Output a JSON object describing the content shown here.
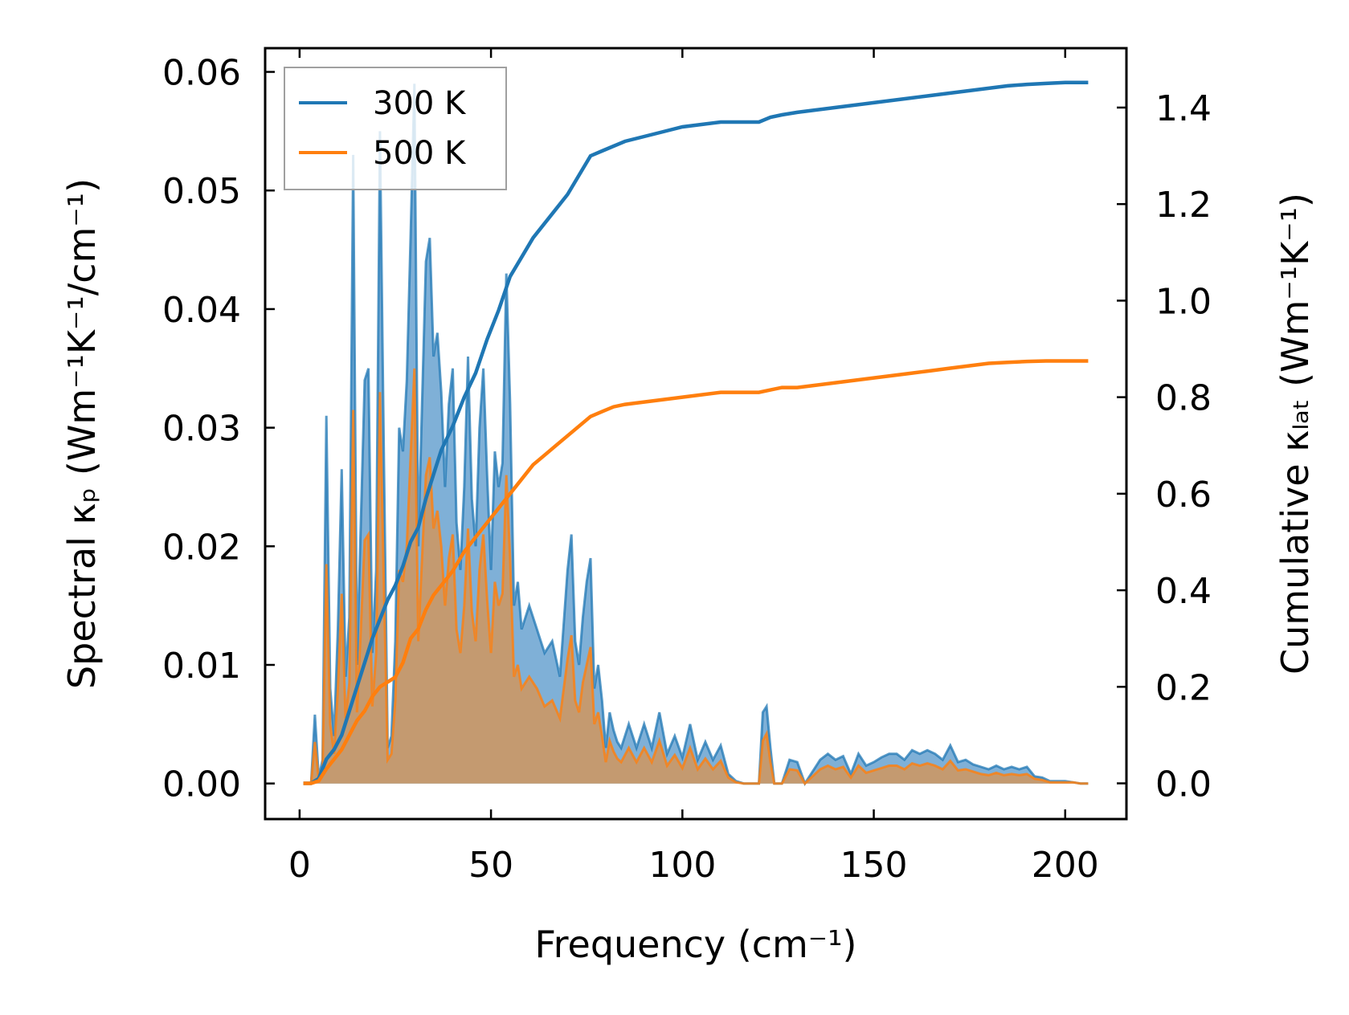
{
  "chart_data": {
    "type": "line",
    "title": "",
    "xlabel": "Frequency (cm⁻¹)",
    "ylabel_left": "Spectral κₚ (Wm⁻¹K⁻¹/cm⁻¹)",
    "ylabel_right": "Cumulative κₗₐₜ (Wm⁻¹K⁻¹)",
    "xlim": [
      -9,
      216
    ],
    "ylim_left": [
      -0.003,
      0.062
    ],
    "ylim_right": [
      -0.074,
      1.523
    ],
    "x_ticks": [
      "0",
      "50",
      "100",
      "150",
      "200"
    ],
    "y_ticks_left": [
      "0.00",
      "0.01",
      "0.02",
      "0.03",
      "0.04",
      "0.05",
      "0.06"
    ],
    "y_ticks_right": [
      "0.0",
      "0.2",
      "0.4",
      "0.6",
      "0.8",
      "1.0",
      "1.2",
      "1.4"
    ],
    "legend": {
      "location": "upper-left",
      "entries": [
        "300 K",
        "500 K"
      ]
    },
    "colors": {
      "300K": "#1f77b4",
      "500K": "#ff7f0e",
      "fill_300K": "#7fb0d7",
      "fill_overlap": "#c49a70"
    },
    "series": [
      {
        "name": "300 K spectral κₚ",
        "axis": "left",
        "style": "filled",
        "x": [
          1,
          3,
          4,
          5,
          6,
          7,
          8,
          9,
          10,
          11,
          12,
          13,
          14,
          15,
          16,
          17,
          18,
          19,
          20,
          21,
          22,
          23,
          24,
          25,
          26,
          27,
          28,
          29,
          30,
          31,
          32,
          33,
          34,
          35,
          36,
          37,
          38,
          39,
          40,
          41,
          42,
          43,
          44,
          45,
          46,
          47,
          48,
          49,
          50,
          51,
          52,
          53,
          54,
          55,
          56,
          57,
          58,
          60,
          62,
          64,
          66,
          68,
          70,
          71,
          72,
          73,
          74,
          75,
          76,
          77,
          78,
          79,
          80,
          81,
          82,
          83,
          84,
          86,
          88,
          90,
          92,
          94,
          96,
          98,
          100,
          102,
          104,
          106,
          108,
          110,
          112,
          114,
          116,
          118,
          120,
          121,
          122,
          123,
          124,
          126,
          128,
          130,
          132,
          134,
          136,
          138,
          140,
          142,
          144,
          146,
          148,
          150,
          152,
          154,
          156,
          158,
          160,
          162,
          164,
          166,
          168,
          170,
          172,
          174,
          176,
          178,
          180,
          182,
          184,
          186,
          188,
          190,
          192,
          194,
          196,
          198,
          200,
          202,
          204,
          206
        ],
        "values": [
          0,
          0,
          0.0058,
          0.0005,
          0.002,
          0.031,
          0.008,
          0.004,
          0.013,
          0.0265,
          0.009,
          0.014,
          0.053,
          0.01,
          0.022,
          0.034,
          0.035,
          0.011,
          0.018,
          0.055,
          0.028,
          0.003,
          0.004,
          0.012,
          0.03,
          0.028,
          0.034,
          0.046,
          0.059,
          0.02,
          0.032,
          0.044,
          0.046,
          0.036,
          0.038,
          0.033,
          0.025,
          0.032,
          0.035,
          0.022,
          0.018,
          0.025,
          0.036,
          0.024,
          0.02,
          0.03,
          0.035,
          0.026,
          0.018,
          0.028,
          0.025,
          0.027,
          0.043,
          0.032,
          0.015,
          0.017,
          0.013,
          0.015,
          0.013,
          0.011,
          0.012,
          0.009,
          0.018,
          0.021,
          0.012,
          0.01,
          0.014,
          0.017,
          0.019,
          0.008,
          0.01,
          0.007,
          0.003,
          0.006,
          0.0045,
          0.0035,
          0.003,
          0.005,
          0.003,
          0.005,
          0.003,
          0.006,
          0.0025,
          0.004,
          0.0022,
          0.005,
          0.002,
          0.0035,
          0.002,
          0.0032,
          0.0008,
          0.0002,
          0,
          0,
          0,
          0.006,
          0.0065,
          0.003,
          0,
          0,
          0.002,
          0.0018,
          0,
          0.001,
          0.002,
          0.0025,
          0.002,
          0.0023,
          0.0008,
          0.0025,
          0.0015,
          0.0018,
          0.0022,
          0.0025,
          0.0025,
          0.002,
          0.0028,
          0.0025,
          0.0028,
          0.0025,
          0.002,
          0.0032,
          0.0018,
          0.002,
          0.0016,
          0.0014,
          0.0012,
          0.0015,
          0.0012,
          0.0014,
          0.0012,
          0.0014,
          0.0006,
          0.0005,
          0.0002,
          0.0002,
          0.0002,
          0.0001,
          0,
          0
        ]
      },
      {
        "name": "500 K spectral κₚ",
        "axis": "left",
        "style": "filled",
        "x": [
          1,
          3,
          4,
          5,
          6,
          7,
          8,
          9,
          10,
          11,
          12,
          13,
          14,
          15,
          16,
          17,
          18,
          19,
          20,
          21,
          22,
          23,
          24,
          25,
          26,
          27,
          28,
          29,
          30,
          31,
          32,
          33,
          34,
          35,
          36,
          37,
          38,
          39,
          40,
          41,
          42,
          43,
          44,
          45,
          46,
          47,
          48,
          49,
          50,
          51,
          52,
          53,
          54,
          55,
          56,
          57,
          58,
          60,
          62,
          64,
          66,
          68,
          70,
          71,
          72,
          73,
          74,
          75,
          76,
          77,
          78,
          79,
          80,
          81,
          82,
          83,
          84,
          86,
          88,
          90,
          92,
          94,
          96,
          98,
          100,
          102,
          104,
          106,
          108,
          110,
          112,
          114,
          116,
          118,
          120,
          121,
          122,
          123,
          124,
          126,
          128,
          130,
          132,
          134,
          136,
          138,
          140,
          142,
          144,
          146,
          148,
          150,
          152,
          154,
          156,
          158,
          160,
          162,
          164,
          166,
          168,
          170,
          172,
          174,
          176,
          178,
          180,
          182,
          184,
          186,
          188,
          190,
          192,
          194,
          196,
          198,
          200,
          202,
          204,
          206
        ],
        "values": [
          0,
          0,
          0.0035,
          0.0003,
          0.0012,
          0.0185,
          0.005,
          0.0025,
          0.008,
          0.016,
          0.0055,
          0.0085,
          0.0315,
          0.006,
          0.013,
          0.0205,
          0.021,
          0.0065,
          0.011,
          0.033,
          0.017,
          0.002,
          0.0025,
          0.007,
          0.018,
          0.017,
          0.02,
          0.0275,
          0.035,
          0.012,
          0.019,
          0.026,
          0.0275,
          0.0215,
          0.023,
          0.02,
          0.015,
          0.019,
          0.021,
          0.013,
          0.011,
          0.015,
          0.0215,
          0.0145,
          0.012,
          0.018,
          0.021,
          0.0155,
          0.011,
          0.017,
          0.015,
          0.016,
          0.026,
          0.019,
          0.009,
          0.01,
          0.008,
          0.009,
          0.008,
          0.0065,
          0.007,
          0.0055,
          0.0105,
          0.0125,
          0.007,
          0.006,
          0.0085,
          0.01,
          0.0115,
          0.005,
          0.006,
          0.004,
          0.0018,
          0.0036,
          0.0027,
          0.0021,
          0.0018,
          0.003,
          0.0018,
          0.003,
          0.0018,
          0.0036,
          0.0015,
          0.0024,
          0.0013,
          0.003,
          0.0012,
          0.0021,
          0.0012,
          0.0019,
          0.0005,
          0.0001,
          0,
          0,
          0,
          0.0036,
          0.0042,
          0.0018,
          0,
          0,
          0.0012,
          0.0011,
          0,
          0.0006,
          0.0012,
          0.0015,
          0.0012,
          0.0014,
          0.0005,
          0.0015,
          0.0009,
          0.0011,
          0.0013,
          0.0015,
          0.0015,
          0.0012,
          0.0017,
          0.0015,
          0.0017,
          0.0015,
          0.0012,
          0.0019,
          0.0011,
          0.0012,
          0.001,
          0.0008,
          0.0007,
          0.0009,
          0.0007,
          0.0008,
          0.0007,
          0.0008,
          0.0004,
          0.0003,
          0.0001,
          0.0001,
          0.0001,
          0.0001,
          0,
          0
        ]
      },
      {
        "name": "300 K",
        "axis": "right",
        "style": "line",
        "x": [
          1,
          3,
          5,
          7,
          9,
          11,
          13,
          15,
          17,
          19,
          21,
          23,
          25,
          27,
          29,
          31,
          33,
          35,
          37,
          40,
          43,
          46,
          49,
          52,
          55,
          58,
          61,
          64,
          67,
          70,
          73,
          76,
          79,
          82,
          85,
          90,
          95,
          100,
          105,
          110,
          115,
          120,
          123,
          126,
          130,
          135,
          140,
          145,
          150,
          155,
          160,
          165,
          170,
          175,
          180,
          185,
          190,
          195,
          200,
          206
        ],
        "values": [
          0,
          0,
          0.01,
          0.05,
          0.07,
          0.1,
          0.15,
          0.2,
          0.25,
          0.3,
          0.34,
          0.38,
          0.41,
          0.45,
          0.5,
          0.53,
          0.59,
          0.64,
          0.69,
          0.74,
          0.8,
          0.85,
          0.92,
          0.98,
          1.05,
          1.09,
          1.13,
          1.16,
          1.19,
          1.22,
          1.26,
          1.3,
          1.31,
          1.32,
          1.33,
          1.34,
          1.35,
          1.36,
          1.365,
          1.37,
          1.37,
          1.37,
          1.38,
          1.385,
          1.39,
          1.395,
          1.4,
          1.405,
          1.41,
          1.415,
          1.42,
          1.425,
          1.43,
          1.435,
          1.44,
          1.445,
          1.448,
          1.45,
          1.452,
          1.452
        ]
      },
      {
        "name": "500 K",
        "axis": "right",
        "style": "line",
        "x": [
          1,
          3,
          5,
          7,
          9,
          11,
          13,
          15,
          17,
          19,
          21,
          23,
          25,
          27,
          29,
          31,
          33,
          35,
          37,
          40,
          43,
          46,
          49,
          52,
          55,
          58,
          61,
          64,
          67,
          70,
          73,
          76,
          79,
          82,
          85,
          90,
          95,
          100,
          105,
          110,
          115,
          120,
          123,
          126,
          130,
          135,
          140,
          145,
          150,
          155,
          160,
          165,
          170,
          175,
          180,
          185,
          190,
          195,
          200,
          206
        ],
        "values": [
          0,
          0,
          0.005,
          0.03,
          0.05,
          0.07,
          0.1,
          0.13,
          0.15,
          0.18,
          0.2,
          0.21,
          0.22,
          0.25,
          0.3,
          0.32,
          0.36,
          0.39,
          0.41,
          0.44,
          0.48,
          0.51,
          0.54,
          0.57,
          0.6,
          0.63,
          0.66,
          0.68,
          0.7,
          0.72,
          0.74,
          0.76,
          0.77,
          0.78,
          0.785,
          0.79,
          0.795,
          0.8,
          0.805,
          0.81,
          0.81,
          0.81,
          0.815,
          0.82,
          0.82,
          0.825,
          0.83,
          0.835,
          0.84,
          0.845,
          0.85,
          0.855,
          0.86,
          0.865,
          0.87,
          0.872,
          0.874,
          0.875,
          0.875,
          0.875
        ]
      }
    ]
  }
}
